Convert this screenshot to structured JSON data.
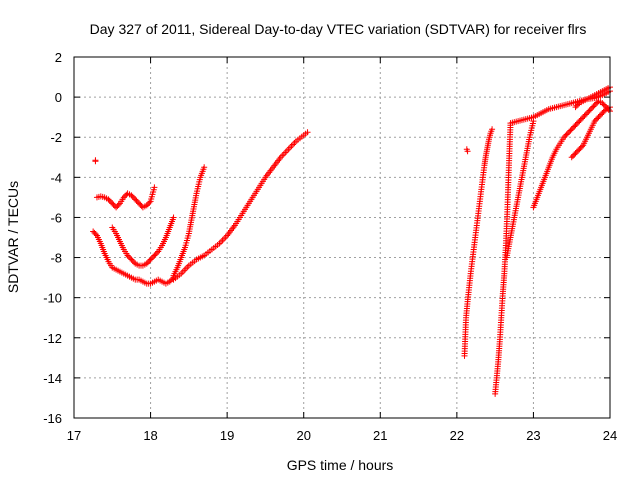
{
  "chart_data": {
    "type": "scatter",
    "title": "Day 327 of 2011, Sidereal Day-to-day VTEC variation (SDTVAR) for receiver flrs",
    "xlabel": "GPS time / hours",
    "ylabel": "SDTVAR / TECUs",
    "xlim": [
      17,
      24
    ],
    "ylim": [
      -16,
      2
    ],
    "x_ticks": [
      "17",
      "18",
      "19",
      "20",
      "21",
      "22",
      "23",
      "24"
    ],
    "y_ticks": [
      "2",
      "0",
      "-2",
      "-4",
      "-6",
      "-8",
      "-10",
      "-12",
      "-14",
      "-16"
    ],
    "grid": true,
    "marker": "+",
    "marker_color": "#ff0000",
    "series": [
      {
        "x": [
          17.28,
          17.28
        ],
        "y": [
          -3.2,
          -3.15
        ]
      },
      {
        "x": [
          17.3,
          17.35,
          17.4,
          17.45,
          17.5,
          17.55,
          17.6,
          17.65,
          17.7,
          17.75,
          17.8,
          17.85,
          17.9,
          17.95,
          18.0,
          18.05
        ],
        "y": [
          -5.0,
          -4.95,
          -5.0,
          -5.1,
          -5.3,
          -5.5,
          -5.3,
          -5.0,
          -4.8,
          -4.9,
          -5.1,
          -5.3,
          -5.5,
          -5.4,
          -5.2,
          -4.5
        ]
      },
      {
        "x": [
          17.25,
          17.3,
          17.35,
          17.4,
          17.45,
          17.5,
          17.55,
          17.6,
          17.65,
          17.7,
          17.75,
          17.8,
          17.85,
          17.9,
          17.95,
          18.0,
          18.05,
          18.1,
          18.15,
          18.2,
          18.25,
          18.3
        ],
        "y": [
          -6.7,
          -6.9,
          -7.3,
          -7.8,
          -8.2,
          -8.5,
          -8.6,
          -8.7,
          -8.8,
          -8.9,
          -9.0,
          -9.1,
          -9.1,
          -9.2,
          -9.3,
          -9.3,
          -9.2,
          -9.1,
          -9.2,
          -9.3,
          -9.2,
          -9.0
        ]
      },
      {
        "x": [
          17.5,
          17.55,
          17.6,
          17.65,
          17.7,
          17.75,
          17.8,
          17.85,
          17.9,
          17.95,
          18.0,
          18.05,
          18.1,
          18.15,
          18.2,
          18.25,
          18.3
        ],
        "y": [
          -6.5,
          -6.8,
          -7.2,
          -7.6,
          -7.9,
          -8.1,
          -8.3,
          -8.4,
          -8.4,
          -8.3,
          -8.1,
          -7.9,
          -7.7,
          -7.4,
          -7.0,
          -6.5,
          -6.0
        ]
      },
      {
        "x": [
          18.3,
          18.35,
          18.4,
          18.45,
          18.5,
          18.55,
          18.6,
          18.65,
          18.7
        ],
        "y": [
          -8.9,
          -8.5,
          -8.0,
          -7.5,
          -6.8,
          -5.8,
          -4.8,
          -4.0,
          -3.5
        ]
      },
      {
        "x": [
          18.3,
          18.4,
          18.5,
          18.6,
          18.7,
          18.8,
          18.9,
          19.0,
          19.1,
          19.2,
          19.3,
          19.4,
          19.5,
          19.6,
          19.7,
          19.8,
          19.9,
          20.0,
          20.05
        ],
        "y": [
          -9.1,
          -8.8,
          -8.4,
          -8.1,
          -7.9,
          -7.6,
          -7.3,
          -6.9,
          -6.4,
          -5.8,
          -5.2,
          -4.6,
          -4.0,
          -3.5,
          -3.0,
          -2.6,
          -2.2,
          -1.9,
          -1.75
        ]
      },
      {
        "x": [
          22.1,
          22.12,
          22.14,
          22.16,
          22.18,
          22.2,
          22.22,
          22.24,
          22.26,
          22.28,
          22.3,
          22.32,
          22.34,
          22.36,
          22.38,
          22.4,
          22.42,
          22.44,
          22.46
        ],
        "y": [
          -12.9,
          -11.0,
          -10.2,
          -9.5,
          -8.8,
          -8.2,
          -7.6,
          -7.0,
          -6.4,
          -5.8,
          -5.2,
          -4.6,
          -4.0,
          -3.4,
          -2.9,
          -2.5,
          -2.1,
          -1.8,
          -1.6
        ]
      },
      {
        "x": [
          22.13,
          22.14
        ],
        "y": [
          -2.6,
          -2.7
        ]
      },
      {
        "x": [
          22.5,
          22.52,
          22.54,
          22.56,
          22.58,
          22.6,
          22.62,
          22.64,
          22.66,
          22.68,
          22.7
        ],
        "y": [
          -14.8,
          -14.0,
          -13.2,
          -12.2,
          -11.0,
          -9.8,
          -8.8,
          -7.4,
          -5.6,
          -3.4,
          -1.4
        ]
      },
      {
        "x": [
          22.65,
          22.7,
          22.75,
          22.8,
          22.85,
          22.9,
          22.95,
          23.0
        ],
        "y": [
          -8.0,
          -7.0,
          -6.0,
          -5.0,
          -4.0,
          -3.0,
          -2.0,
          -1.2
        ]
      },
      {
        "x": [
          22.7,
          22.8,
          22.9,
          23.0,
          23.1,
          23.2,
          23.3,
          23.4,
          23.5,
          23.6,
          23.7,
          23.8,
          23.9,
          24.0
        ],
        "y": [
          -1.3,
          -1.2,
          -1.1,
          -1.0,
          -0.8,
          -0.6,
          -0.5,
          -0.4,
          -0.3,
          -0.2,
          -0.1,
          -0.05,
          0.1,
          0.3
        ]
      },
      {
        "x": [
          23.0,
          23.05,
          23.1,
          23.15,
          23.2,
          23.25,
          23.3,
          23.35,
          23.4,
          23.45,
          23.5,
          23.55,
          23.6,
          23.65,
          23.7,
          23.75,
          23.8,
          23.85,
          23.9,
          23.95,
          24.0
        ],
        "y": [
          -5.5,
          -5.0,
          -4.5,
          -4.0,
          -3.5,
          -3.0,
          -2.6,
          -2.3,
          -2.0,
          -1.8,
          -1.6,
          -1.4,
          -1.2,
          -1.0,
          -0.8,
          -0.6,
          -0.4,
          -0.2,
          -0.3,
          -0.5,
          -0.7
        ]
      },
      {
        "x": [
          23.5,
          23.55,
          23.6,
          23.65,
          23.7,
          23.75,
          23.8,
          23.85,
          23.9,
          23.95,
          24.0
        ],
        "y": [
          -3.0,
          -2.8,
          -2.6,
          -2.4,
          -2.0,
          -1.6,
          -1.2,
          -1.0,
          -0.8,
          -0.6,
          -0.5
        ]
      },
      {
        "x": [
          23.55,
          23.6,
          23.65,
          23.7,
          23.75,
          23.8,
          23.85,
          23.9,
          23.95,
          24.0
        ],
        "y": [
          -0.5,
          -0.3,
          -0.2,
          -0.1,
          0.0,
          0.1,
          0.2,
          0.3,
          0.4,
          0.5
        ]
      }
    ]
  }
}
